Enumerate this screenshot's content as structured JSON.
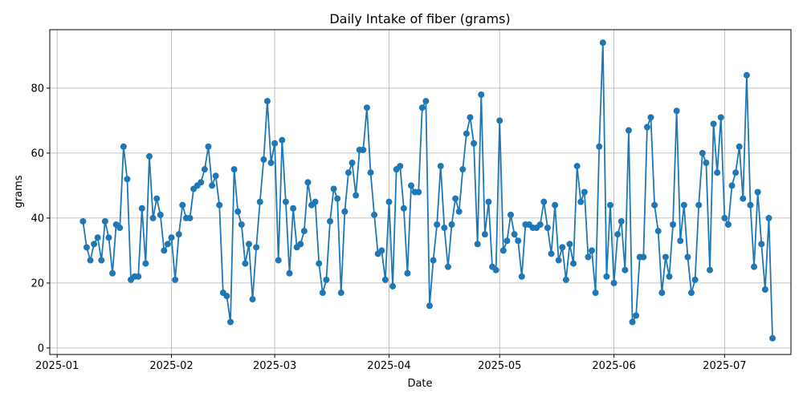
{
  "chart_data": {
    "type": "line",
    "title": "Daily Intake of fiber (grams)",
    "xlabel": "Date",
    "ylabel": "grams",
    "grid": true,
    "marker": "circle",
    "line_color": "#1f77b4",
    "xlim": [
      "2024-12-30",
      "2025-07-19"
    ],
    "ylim": [
      -2,
      98
    ],
    "x_ticks": [
      "2025-01-01",
      "2025-02-01",
      "2025-03-01",
      "2025-04-01",
      "2025-05-01",
      "2025-06-01",
      "2025-07-01"
    ],
    "x_tick_labels": [
      "2025-01",
      "2025-02",
      "2025-03",
      "2025-04",
      "2025-05",
      "2025-06",
      "2025-07"
    ],
    "y_ticks": [
      0,
      20,
      40,
      60,
      80
    ],
    "series": [
      {
        "x_start": "2025-01-08",
        "x_step_days": 1,
        "values": [
          39,
          31,
          27,
          32,
          34,
          27,
          39,
          34,
          23,
          38,
          37,
          62,
          52,
          21,
          22,
          22,
          43,
          26,
          59,
          40,
          46,
          41,
          30,
          32,
          34,
          21,
          35,
          44,
          40,
          40,
          49,
          50,
          51,
          55,
          62,
          50,
          53,
          44,
          17,
          16,
          8,
          55,
          42,
          38,
          26,
          32,
          15,
          31,
          45,
          58,
          76,
          57,
          63,
          27,
          64,
          45,
          23,
          43,
          31,
          32,
          36,
          51,
          44,
          45,
          26,
          17,
          21,
          39,
          49,
          46,
          17,
          42,
          54,
          57,
          47,
          61,
          61,
          74,
          54,
          41,
          29,
          30,
          21,
          45,
          19,
          55,
          56,
          43,
          23,
          50,
          48,
          48,
          74,
          76,
          13,
          27,
          38,
          56,
          37,
          25,
          38,
          46,
          42,
          55,
          66,
          71,
          63,
          32,
          78,
          35,
          45,
          25,
          24,
          70,
          30,
          33,
          41,
          35,
          33,
          22,
          38,
          38,
          37,
          37,
          38,
          45,
          37,
          29,
          44,
          27,
          31,
          21,
          32,
          26,
          56,
          45,
          48,
          28,
          30,
          17,
          62,
          94,
          22,
          44,
          20,
          35,
          39,
          24,
          67,
          8,
          10,
          28,
          28,
          68,
          71,
          44,
          36,
          17,
          28,
          22,
          38,
          73,
          33,
          44,
          28,
          17,
          21,
          44,
          60,
          57,
          24,
          69,
          54,
          71,
          40,
          38,
          50,
          54,
          62,
          46,
          84,
          44,
          25,
          48,
          32,
          18,
          40,
          3
        ]
      }
    ]
  }
}
